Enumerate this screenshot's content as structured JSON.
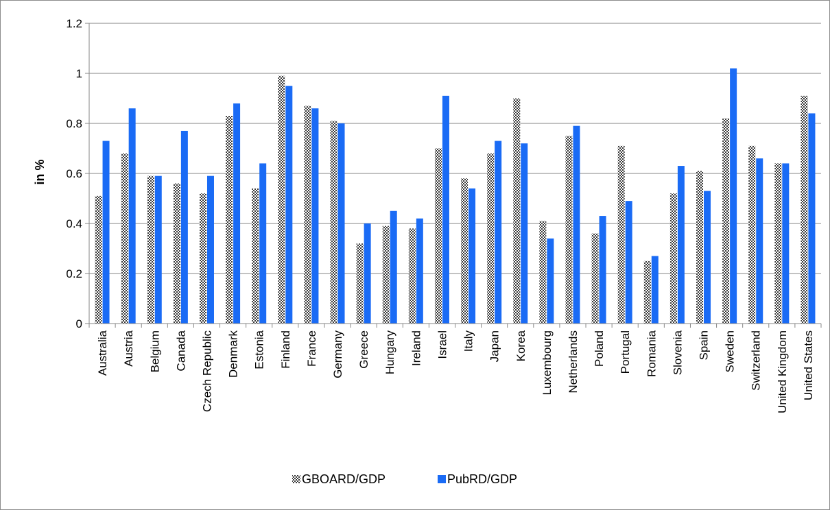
{
  "chart_data": {
    "type": "bar",
    "title": "",
    "xlabel": "",
    "ylabel": "in %",
    "ylim": [
      0,
      1.2
    ],
    "yticks": [
      "0",
      "0.2",
      "0.4",
      "0.6",
      "0.8",
      "1",
      "1.2"
    ],
    "grid": true,
    "legend_position": "bottom",
    "categories": [
      "Australia",
      "Austria",
      "Belgium",
      "Canada",
      "Czech Republic",
      "Denmark",
      "Estonia",
      "Finland",
      "France",
      "Germany",
      "Greece",
      "Hungary",
      "Ireland",
      "Israel",
      "Italy",
      "Japan",
      "Korea",
      "Luxembourg",
      "Netherlands",
      "Poland",
      "Portugal",
      "Romania",
      "Slovenia",
      "Spain",
      "Sweden",
      "Switzerland",
      "United Kingdom",
      "United States"
    ],
    "series": [
      {
        "name": "GBOARD/GDP",
        "color": "#555555",
        "pattern": "checker",
        "values": [
          0.51,
          0.68,
          0.59,
          0.56,
          0.52,
          0.83,
          0.54,
          0.99,
          0.87,
          0.81,
          0.32,
          0.39,
          0.38,
          0.7,
          0.58,
          0.68,
          0.9,
          0.41,
          0.75,
          0.36,
          0.71,
          0.25,
          0.52,
          0.61,
          0.82,
          0.71,
          0.64,
          0.91
        ]
      },
      {
        "name": "PubRD/GDP",
        "color": "#1a6bf5",
        "pattern": "solid",
        "values": [
          0.73,
          0.86,
          0.59,
          0.77,
          0.59,
          0.88,
          0.64,
          0.95,
          0.86,
          0.8,
          0.4,
          0.45,
          0.42,
          0.91,
          0.54,
          0.73,
          0.72,
          0.34,
          0.79,
          0.43,
          0.49,
          0.27,
          0.63,
          0.53,
          1.02,
          0.66,
          0.64,
          0.84
        ]
      }
    ]
  }
}
